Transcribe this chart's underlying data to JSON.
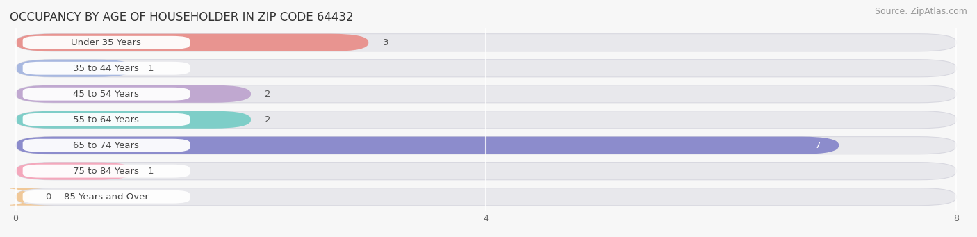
{
  "title": "OCCUPANCY BY AGE OF HOUSEHOLDER IN ZIP CODE 64432",
  "source": "Source: ZipAtlas.com",
  "categories": [
    "Under 35 Years",
    "35 to 44 Years",
    "45 to 54 Years",
    "55 to 64 Years",
    "65 to 74 Years",
    "75 to 84 Years",
    "85 Years and Over"
  ],
  "values": [
    3,
    1,
    2,
    2,
    7,
    1,
    0
  ],
  "bar_colors": [
    "#E89490",
    "#A8B8E0",
    "#C0A8D0",
    "#7ECEC8",
    "#8C8CCC",
    "#F4A8BC",
    "#F0C898"
  ],
  "xlim": [
    0,
    8
  ],
  "xticks": [
    0,
    4,
    8
  ],
  "background_color": "#f7f7f7",
  "bar_track_color": "#e8e8ec",
  "bar_track_border": "#d8d8e0",
  "title_fontsize": 12,
  "source_fontsize": 9,
  "label_fontsize": 9.5,
  "value_fontsize": 9.5
}
